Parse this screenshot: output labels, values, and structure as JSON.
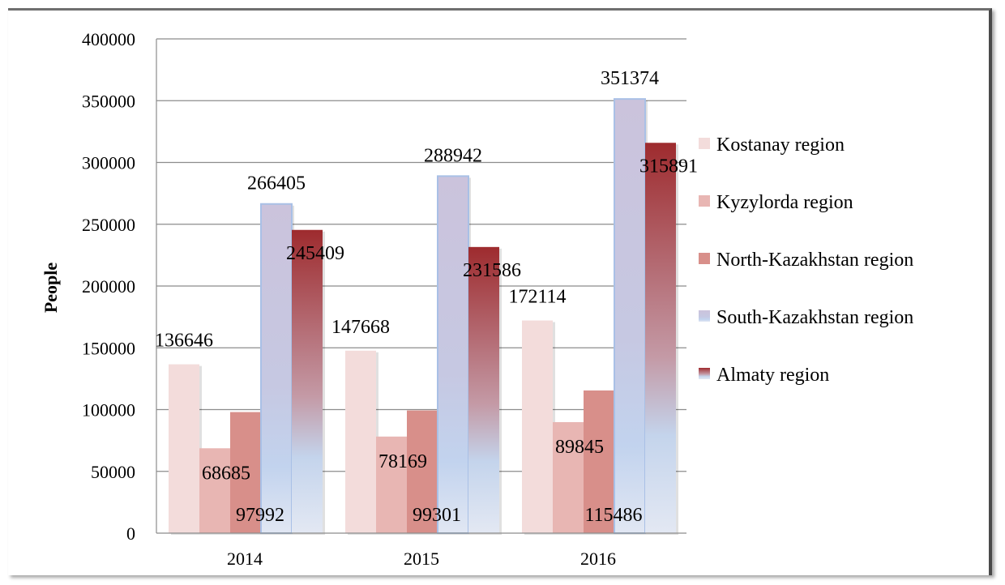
{
  "chart_data": {
    "type": "bar",
    "title": "",
    "xlabel": "",
    "ylabel": "People",
    "categories": [
      "2014",
      "2015",
      "2016"
    ],
    "ylim": [
      0,
      400000
    ],
    "yticks": [
      0,
      50000,
      100000,
      150000,
      200000,
      250000,
      300000,
      350000,
      400000
    ],
    "grid": true,
    "legend_position": "right",
    "series": [
      {
        "name": "Kostanay region",
        "values": [
          136646,
          147668,
          172114
        ],
        "color": "#f3dcdb"
      },
      {
        "name": "Kyzylorda region",
        "values": [
          68685,
          78169,
          89845
        ],
        "color": "#e8b6b3"
      },
      {
        "name": "North-Kazakhstan region",
        "values": [
          97992,
          99301,
          115486
        ],
        "color": "#d88f8a"
      },
      {
        "name": "South-Kazakhstan region",
        "values": [
          266405,
          288942,
          351374
        ],
        "color": "#cbc3dc"
      },
      {
        "name": "Almaty region",
        "values": [
          245409,
          231586,
          315891
        ],
        "color": "#9e2b2e"
      }
    ]
  }
}
